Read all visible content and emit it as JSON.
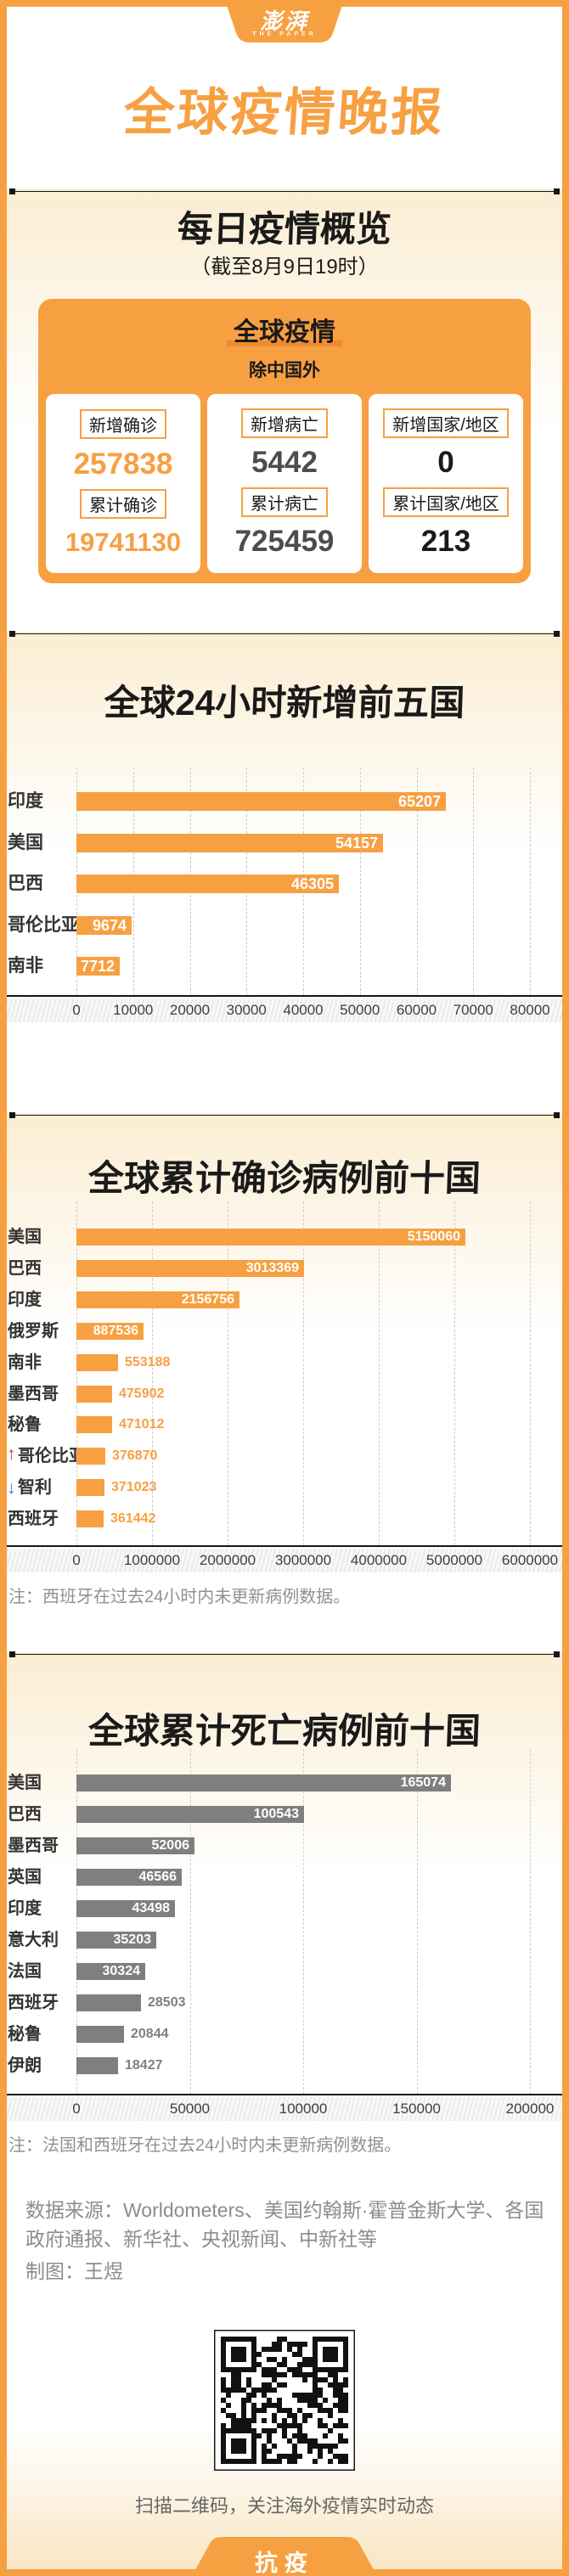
{
  "page": {
    "accent_color": "#F7A042",
    "accent_dark_color": "#EF8A31",
    "cream_color": "#FBEDD2",
    "brand_logo_zh": "澎湃",
    "brand_logo_en": "THE PAPER",
    "main_title": "全球疫情晚报",
    "bottom_badge": "抗疫"
  },
  "overview": {
    "heading": "每日疫情概览",
    "subheading": "（截至8月9日19时）",
    "box_title": "全球疫情",
    "box_subtitle": "除中国外",
    "cards": [
      {
        "value_color": "#F7A042",
        "rows": [
          {
            "label": "新增确诊",
            "value": "257838"
          },
          {
            "label": "累计确诊",
            "value": "19741130"
          }
        ]
      },
      {
        "value_color": "#4D4D4D",
        "rows": [
          {
            "label": "新增病亡",
            "value": "5442"
          },
          {
            "label": "累计病亡",
            "value": "725459"
          }
        ]
      },
      {
        "value_color": "#1A1A1A",
        "rows": [
          {
            "label": "新增国家/地区",
            "value": "0"
          },
          {
            "label": "累计国家/地区",
            "value": "213"
          }
        ]
      }
    ]
  },
  "chart_data": [
    {
      "type": "bar",
      "orientation": "horizontal",
      "title": "全球24小时新增前五国",
      "bar_color": "#F7A042",
      "value_color_inside": "#FFFFFF",
      "categories": [
        "印度",
        "美国",
        "巴西",
        "哥伦比亚",
        "南非"
      ],
      "values": [
        65207,
        54157,
        46305,
        9674,
        7712
      ],
      "value_label_inside": [
        true,
        true,
        true,
        true,
        true
      ],
      "rank_arrows": [
        null,
        null,
        null,
        null,
        null
      ],
      "xlim": [
        0,
        80000
      ],
      "ticks": [
        "0",
        "10000",
        "20000",
        "30000",
        "40000",
        "50000",
        "60000",
        "70000",
        "80000"
      ],
      "grid": "dashed-vertical",
      "note": ""
    },
    {
      "type": "bar",
      "orientation": "horizontal",
      "title": "全球累计确诊病例前十国",
      "bar_color": "#F7A042",
      "value_color_inside": "#FFFFFF",
      "categories": [
        "美国",
        "巴西",
        "印度",
        "俄罗斯",
        "南非",
        "墨西哥",
        "秘鲁",
        "哥伦比亚",
        "智利",
        "西班牙"
      ],
      "values": [
        5150060,
        3013369,
        2156756,
        887536,
        553188,
        475902,
        471012,
        376870,
        371023,
        361442
      ],
      "value_label_inside": [
        true,
        true,
        true,
        true,
        false,
        false,
        false,
        false,
        false,
        false
      ],
      "rank_arrows": [
        null,
        null,
        null,
        null,
        null,
        null,
        null,
        "up",
        "down",
        null
      ],
      "arrow_up_color": "#E02A20",
      "arrow_down_color": "#2D7DD2",
      "xlim": [
        0,
        6000000
      ],
      "ticks": [
        "0",
        "1000000",
        "2000000",
        "3000000",
        "4000000",
        "5000000",
        "6000000"
      ],
      "grid": "dashed-vertical",
      "note": "注：西班牙在过去24小时内未更新病例数据。"
    },
    {
      "type": "bar",
      "orientation": "horizontal",
      "title": "全球累计死亡病例前十国",
      "bar_color": "#7F7F7F",
      "value_color_inside": "#FFFFFF",
      "categories": [
        "美国",
        "巴西",
        "墨西哥",
        "英国",
        "印度",
        "意大利",
        "法国",
        "西班牙",
        "秘鲁",
        "伊朗"
      ],
      "values": [
        165074,
        100543,
        52006,
        46566,
        43498,
        35203,
        30324,
        28503,
        20844,
        18427
      ],
      "value_label_inside": [
        true,
        true,
        true,
        true,
        true,
        true,
        true,
        false,
        false,
        false
      ],
      "rank_arrows": [
        null,
        null,
        null,
        null,
        null,
        null,
        null,
        null,
        null,
        null
      ],
      "xlim": [
        0,
        200000
      ],
      "ticks": [
        "0",
        "50000",
        "100000",
        "150000",
        "200000"
      ],
      "grid": "dashed-vertical",
      "note": "注：法国和西班牙在过去24小时内未更新病例数据。"
    }
  ],
  "footer": {
    "source": "数据来源：Worldometers、美国约翰斯·霍普金斯大学、各国政府通报、新华社、央视新闻、中新社等",
    "credit": "制图：王煜",
    "qr_caption": "扫描二维码，关注海外疫情实时动态"
  }
}
